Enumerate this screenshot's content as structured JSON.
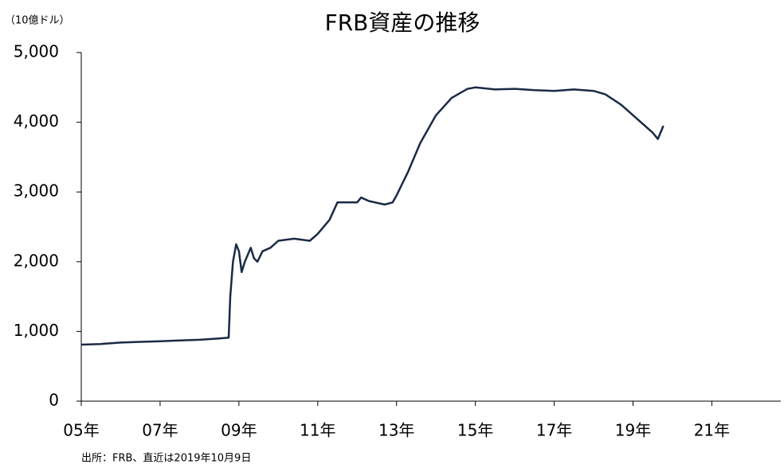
{
  "chart_data": {
    "type": "line",
    "title": "FRB資産の推移",
    "y_unit_label": "（10億ドル）",
    "source": "出所：FRB、直近は2019年10月9日",
    "xlim": [
      5,
      22.75
    ],
    "xticks": [
      {
        "value": 5,
        "label": "05年"
      },
      {
        "value": 7,
        "label": "07年"
      },
      {
        "value": 9,
        "label": "09年"
      },
      {
        "value": 11,
        "label": "11年"
      },
      {
        "value": 13,
        "label": "13年"
      },
      {
        "value": 15,
        "label": "15年"
      },
      {
        "value": 17,
        "label": "17年"
      },
      {
        "value": 19,
        "label": "19年"
      },
      {
        "value": 21,
        "label": "21年"
      }
    ],
    "ylim": [
      0,
      5000
    ],
    "yticks": [
      0,
      {
        "value": 1000,
        "label": "1,000"
      },
      {
        "value": 2000,
        "label": "2,000"
      },
      {
        "value": 3000,
        "label": "3,000"
      },
      {
        "value": 4000,
        "label": "4,000"
      },
      {
        "value": 5000,
        "label": "5,000"
      }
    ],
    "x": [
      5.0,
      5.5,
      6.0,
      6.5,
      7.0,
      7.5,
      8.0,
      8.5,
      8.74,
      8.78,
      8.85,
      8.93,
      9.0,
      9.07,
      9.15,
      9.3,
      9.38,
      9.47,
      9.6,
      9.8,
      10.0,
      10.4,
      10.8,
      11.0,
      11.3,
      11.5,
      11.8,
      12.0,
      12.1,
      12.3,
      12.7,
      12.9,
      13.0,
      13.3,
      13.6,
      14.0,
      14.4,
      14.8,
      15.0,
      15.5,
      16.0,
      16.5,
      17.0,
      17.5,
      18.0,
      18.3,
      18.7,
      19.0,
      19.2,
      19.5,
      19.63,
      19.77
    ],
    "series": [
      {
        "name": "FRB資産",
        "color": "#1b2a44",
        "values": [
          810,
          820,
          840,
          850,
          860,
          870,
          880,
          900,
          910,
          1500,
          2000,
          2250,
          2150,
          1850,
          2000,
          2200,
          2050,
          2000,
          2150,
          2200,
          2300,
          2330,
          2300,
          2400,
          2600,
          2850,
          2850,
          2850,
          2920,
          2870,
          2820,
          2850,
          2950,
          3300,
          3700,
          4100,
          4350,
          4480,
          4500,
          4470,
          4480,
          4460,
          4450,
          4470,
          4450,
          4400,
          4250,
          4100,
          4000,
          3850,
          3760,
          3950
        ]
      }
    ]
  }
}
